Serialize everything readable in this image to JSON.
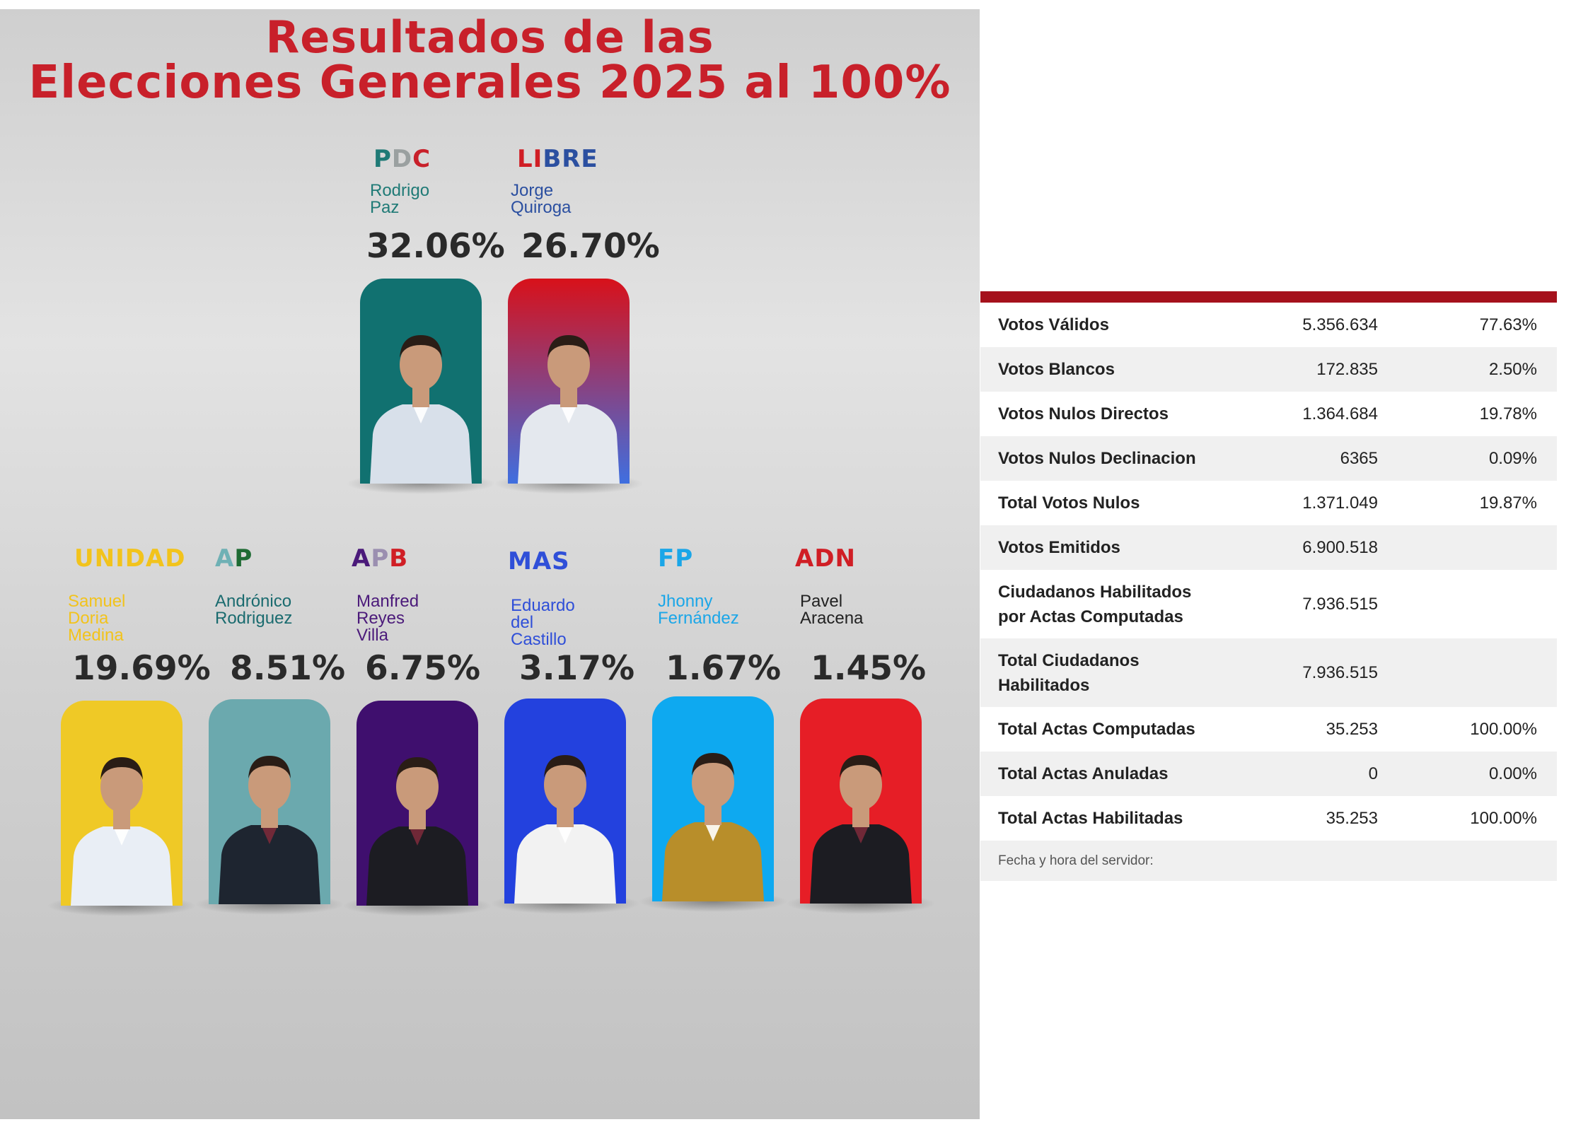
{
  "title": {
    "line1": "Resultados de las",
    "line2": "Elecciones Generales 2025 al 100%"
  },
  "top_candidates": [
    {
      "party_parts": [
        {
          "t": "P",
          "c": "#1f7a76"
        },
        {
          "t": "D",
          "c": "#9aa0a0"
        },
        {
          "t": "C",
          "c": "#c8202a"
        }
      ],
      "name": "Rodrigo\nPaz",
      "name_color": "#1f7a76",
      "percent": "32.06%",
      "bg": "#117170",
      "bg2": "#117170",
      "shirt": "#d8e0ea"
    },
    {
      "party_parts": [
        {
          "t": "LI",
          "c": "#d01e25"
        },
        {
          "t": "BRE",
          "c": "#2b4fa0"
        }
      ],
      "name": "Jorge\nQuiroga",
      "name_color": "#2b4fa0",
      "percent": "26.70%",
      "bg": "#d8111a",
      "bg2": "#3f6fe0",
      "shirt": "#e4e8ee"
    }
  ],
  "bottom_candidates": [
    {
      "party_parts": [
        {
          "t": "UNIDAD",
          "c": "#f2c31c"
        }
      ],
      "name": "Samuel\nDoria Medina",
      "name_color": "#f2c31c",
      "percent": "19.69%",
      "bg": "#efc926",
      "bg2": "#efc926",
      "shirt": "#e9eef5"
    },
    {
      "party_parts": [
        {
          "t": "A",
          "c": "#6fb1b5"
        },
        {
          "t": "P",
          "c": "#1e6b33"
        }
      ],
      "name": "Andrónico\nRodriguez",
      "name_color": "#1a6b6f",
      "percent": "8.51%",
      "bg": "#6ba9ae",
      "bg2": "#6ba9ae",
      "shirt": "#1e2530"
    },
    {
      "party_parts": [
        {
          "t": "A",
          "c": "#4b1a7a"
        },
        {
          "t": "P",
          "c": "#9b8fb0"
        },
        {
          "t": "B",
          "c": "#d01e25"
        }
      ],
      "name": "Manfred\nReyes Villa",
      "name_color": "#4b1a7a",
      "percent": "6.75%",
      "bg": "#3f0f6e",
      "bg2": "#3f0f6e",
      "shirt": "#1c1c22"
    },
    {
      "party_parts": [
        {
          "t": "MAS",
          "c": "#2f4fd8"
        }
      ],
      "name": "Eduardo del\nCastillo",
      "name_color": "#2f4fd8",
      "percent": "3.17%",
      "bg": "#2341de",
      "bg2": "#2341de",
      "shirt": "#f2f2f2"
    },
    {
      "party_parts": [
        {
          "t": "FP",
          "c": "#1aa6e8"
        }
      ],
      "name": "Jhonny\nFernández",
      "name_color": "#1aa6e8",
      "percent": "1.67%",
      "bg": "#0ea9f0",
      "bg2": "#0ea9f0",
      "shirt": "#b88e2a"
    },
    {
      "party_parts": [
        {
          "t": "ADN",
          "c": "#d01e25"
        }
      ],
      "name": "Pavel\nAracena",
      "name_color": "#222222",
      "percent": "1.45%",
      "bg": "#e61e26",
      "bg2": "#e61e26",
      "shirt": "#1c1c22"
    }
  ],
  "table": {
    "rows": [
      {
        "label": "Votos Válidos",
        "value": "5.356.634",
        "percent": "77.63%"
      },
      {
        "label": "Votos Blancos",
        "value": "172.835",
        "percent": "2.50%"
      },
      {
        "label": "Votos Nulos Directos",
        "value": "1.364.684",
        "percent": "19.78%"
      },
      {
        "label": "Votos Nulos Declinacion",
        "value": "6365",
        "percent": "0.09%"
      },
      {
        "label": "Total Votos Nulos",
        "value": "1.371.049",
        "percent": "19.87%"
      },
      {
        "label": "Votos Emitidos",
        "value": "6.900.518",
        "percent": ""
      },
      {
        "label": "Ciudadanos Habilitados\npor Actas Computadas",
        "value": "7.936.515",
        "percent": ""
      },
      {
        "label": "Total Ciudadanos\nHabilitados",
        "value": "7.936.515",
        "percent": ""
      },
      {
        "label": "Total Actas Computadas",
        "value": "35.253",
        "percent": "100.00%"
      },
      {
        "label": "Total Actas Anuladas",
        "value": "0",
        "percent": "0.00%"
      },
      {
        "label": "Total Actas Habilitadas",
        "value": "35.253",
        "percent": "100.00%"
      }
    ],
    "footer": "Fecha y hora del servidor:",
    "accent": "#a5111c"
  }
}
